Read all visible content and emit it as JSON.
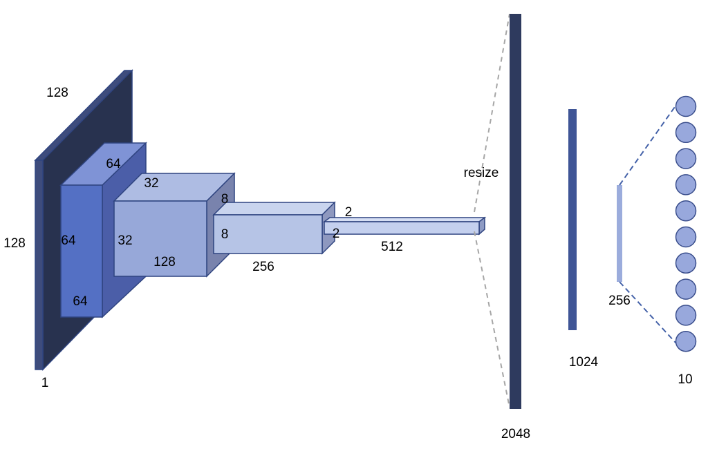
{
  "colors": {
    "input_front": "#28324F",
    "input_side": "#3E4C7C",
    "block1_front": "#5470C4",
    "block1_top": "#7F93D6",
    "block1_side": "#4B5EA8",
    "block2_front": "#97A8D9",
    "block2_top": "#AEBCE3",
    "block2_side": "#7983AD",
    "block3_front": "#B6C4E6",
    "block3_top": "#C9D4EE",
    "block3_side": "#8E98BF",
    "block4_front": "#C4D0EE",
    "block4_top": "#D6DFF4",
    "block4_side": "#8E9BC4",
    "outline": "#2F4480",
    "fc2048": "#2E3A5E",
    "fc1024": "#3F5596",
    "fc256": "#9BACDC",
    "neuron_fill": "#98A8DC",
    "neuron_stroke": "#3A4E8C",
    "dash_gray": "#A6A6A6",
    "dash_blue": "#4361A8"
  },
  "labels": {
    "input_width": "128",
    "input_height": "128",
    "input_depth": "1",
    "block1_top": "64",
    "block1_height": "64",
    "block1_bottom": "64",
    "block2_top": "32",
    "block2_height": "32",
    "block2_depth": "128",
    "block3_top": "8",
    "block3_height": "8",
    "block3_depth": "256",
    "block4_top": "2",
    "block4_height": "2",
    "block4_depth": "512",
    "resize": "resize",
    "fc1": "2048",
    "fc2": "1024",
    "fc3": "256",
    "output": "10"
  },
  "output_neurons": 10
}
